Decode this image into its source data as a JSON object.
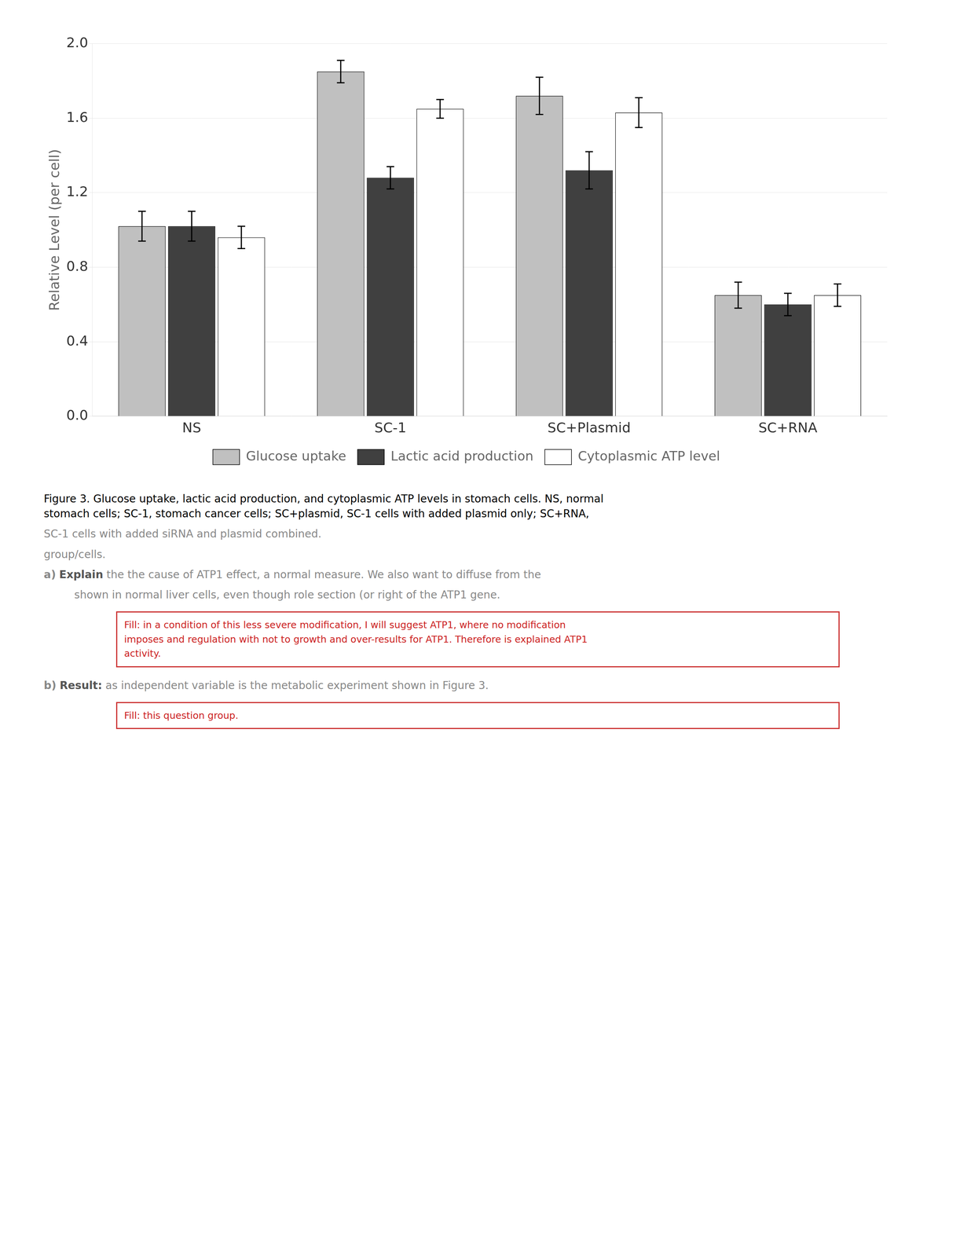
{
  "chart_data": {
    "type": "bar",
    "categories": [
      "NS",
      "SC-1",
      "SC+Plasmid",
      "SC+RNA"
    ],
    "series": [
      {
        "name": "Glucose uptake",
        "color": "#c0c0c0",
        "values": [
          1.02,
          1.85,
          1.72,
          0.65
        ],
        "errors": [
          0.08,
          0.06,
          0.1,
          0.07
        ]
      },
      {
        "name": "Lactic acid production",
        "color": "#404040",
        "values": [
          1.02,
          1.28,
          1.32,
          0.6
        ],
        "errors": [
          0.08,
          0.06,
          0.1,
          0.06
        ]
      },
      {
        "name": "Cytoplasmic ATP level",
        "color": "#ffffff",
        "values": [
          0.96,
          1.65,
          1.63,
          0.65
        ],
        "errors": [
          0.06,
          0.05,
          0.08,
          0.06
        ]
      }
    ],
    "ylabel": "Relative Level (per cell)",
    "ylim": [
      0,
      2
    ],
    "yticks": [
      {
        "value": 0,
        "label": "0.0"
      },
      0.4,
      0.8,
      1.2,
      1.6,
      {
        "value": 2,
        "label": "2.0"
      }
    ],
    "grid": true,
    "legend": "bottom",
    "annotations": [
      "Figure 3. Glucose uptake, lactic acid production, and cytoplasmic ATP levels in stomach cells. NS, normal\nstomach cells; SC-1, stomach cancer cells; SC+plasmid, SC-1 cells with added plasmid only; SC+RNA,",
      "SC-1 cells with added siRNA and plasmid combined.",
      "group/cells.",
      [
        "a)",
        "Explain",
        " the the cause of ATP1 effect, a normal measure. We also want to diffuse from the"
      ],
      "         shown in normal liver cells, even though role section (or right of the ATP1 gene.",
      "Fill: in a condition of this less severe modification, I will suggest ATP1, where no modification\nimposes and regulation with not to growth and over-results for ATP1. Therefore is explained ATP1\nactivity.",
      [
        "b)",
        "Result:",
        " as independent variable is the metabolic experiment shown in Figure 3."
      ],
      "Fill: this question group."
    ]
  }
}
